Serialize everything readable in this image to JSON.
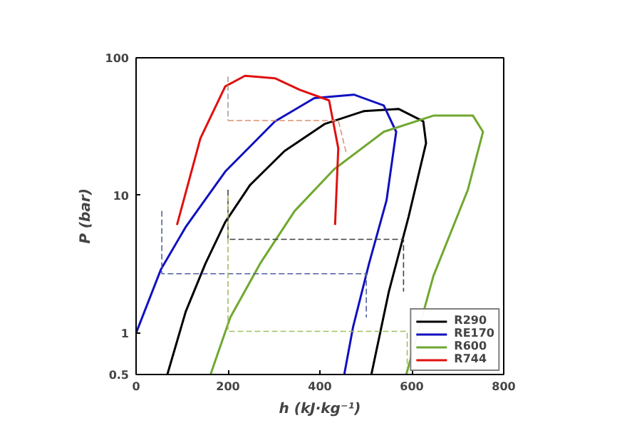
{
  "chart_data": {
    "type": "line",
    "xlabel": "h (kJ·kg⁻¹)",
    "ylabel": "P (bar)",
    "log": "y",
    "grid": false,
    "legend": "bottom right",
    "marker": "none",
    "xlim": [
      0,
      800
    ],
    "xticks": [
      0,
      200,
      400,
      600,
      800
    ],
    "ylim": [
      0.5,
      100
    ],
    "yticks": [
      0.5,
      1,
      10,
      100
    ],
    "series": [
      {
        "name": "R290",
        "color": "#000000",
        "line_style": "solid",
        "x": [
          68,
          108,
          151,
          194,
          248,
          323,
          410,
          496,
          571,
          625,
          631,
          593,
          550,
          512
        ],
        "values": [
          0.5,
          1.43,
          3.2,
          6.4,
          11.9,
          21,
          33,
          41,
          42.5,
          34.5,
          24,
          7,
          2.0,
          0.5
        ]
      },
      {
        "name": "RE170",
        "color": "#1010c0",
        "line_style": "solid",
        "x": [
          0,
          54,
          108,
          194,
          302,
          388,
          474,
          539,
          566,
          545,
          507,
          472,
          453
        ],
        "values": [
          1,
          2.9,
          5.9,
          14.9,
          34.5,
          51,
          54,
          45,
          29,
          9.2,
          3.2,
          1.1,
          0.5
        ]
      },
      {
        "name": "R600",
        "color": "#70a830",
        "line_style": "solid",
        "x": [
          162,
          205,
          270,
          345,
          431,
          539,
          647,
          733,
          755,
          722,
          647,
          588
        ],
        "values": [
          0.5,
          1.3,
          3.2,
          7.7,
          15.5,
          29,
          38,
          38,
          29,
          11,
          2.6,
          0.5
        ]
      },
      {
        "name": "R744",
        "color": "#e01010",
        "line_style": "solid",
        "x": [
          89,
          140,
          194,
          237,
          302,
          356,
          420,
          440,
          433
        ],
        "values": [
          6.1,
          26,
          62,
          74,
          71,
          58.5,
          49,
          22,
          6.1
        ]
      },
      {
        "color": "#e09070",
        "line_style": "dashed",
        "x": [
          200,
          440,
          458
        ],
        "values": [
          35,
          35,
          20
        ]
      },
      {
        "color": "#a0a0a0",
        "line_style": "dashed",
        "x": [
          200,
          200
        ],
        "values": [
          73,
          35
        ]
      },
      {
        "color": "#404040",
        "line_style": "dashed",
        "x": [
          200,
          200,
          575,
          582,
          582
        ],
        "values": [
          11,
          4.8,
          4.8,
          4.8,
          2.0
        ]
      },
      {
        "color": "#5060a0",
        "line_style": "dashed",
        "x": [
          56,
          56,
          495,
          501,
          501
        ],
        "values": [
          7.7,
          2.7,
          2.7,
          2.7,
          1.3
        ]
      },
      {
        "color": "#a0c060",
        "line_style": "dashed",
        "x": [
          200,
          200,
          570,
          590,
          590
        ],
        "values": [
          10,
          1.03,
          1.03,
          1.03,
          0.55
        ]
      }
    ]
  }
}
